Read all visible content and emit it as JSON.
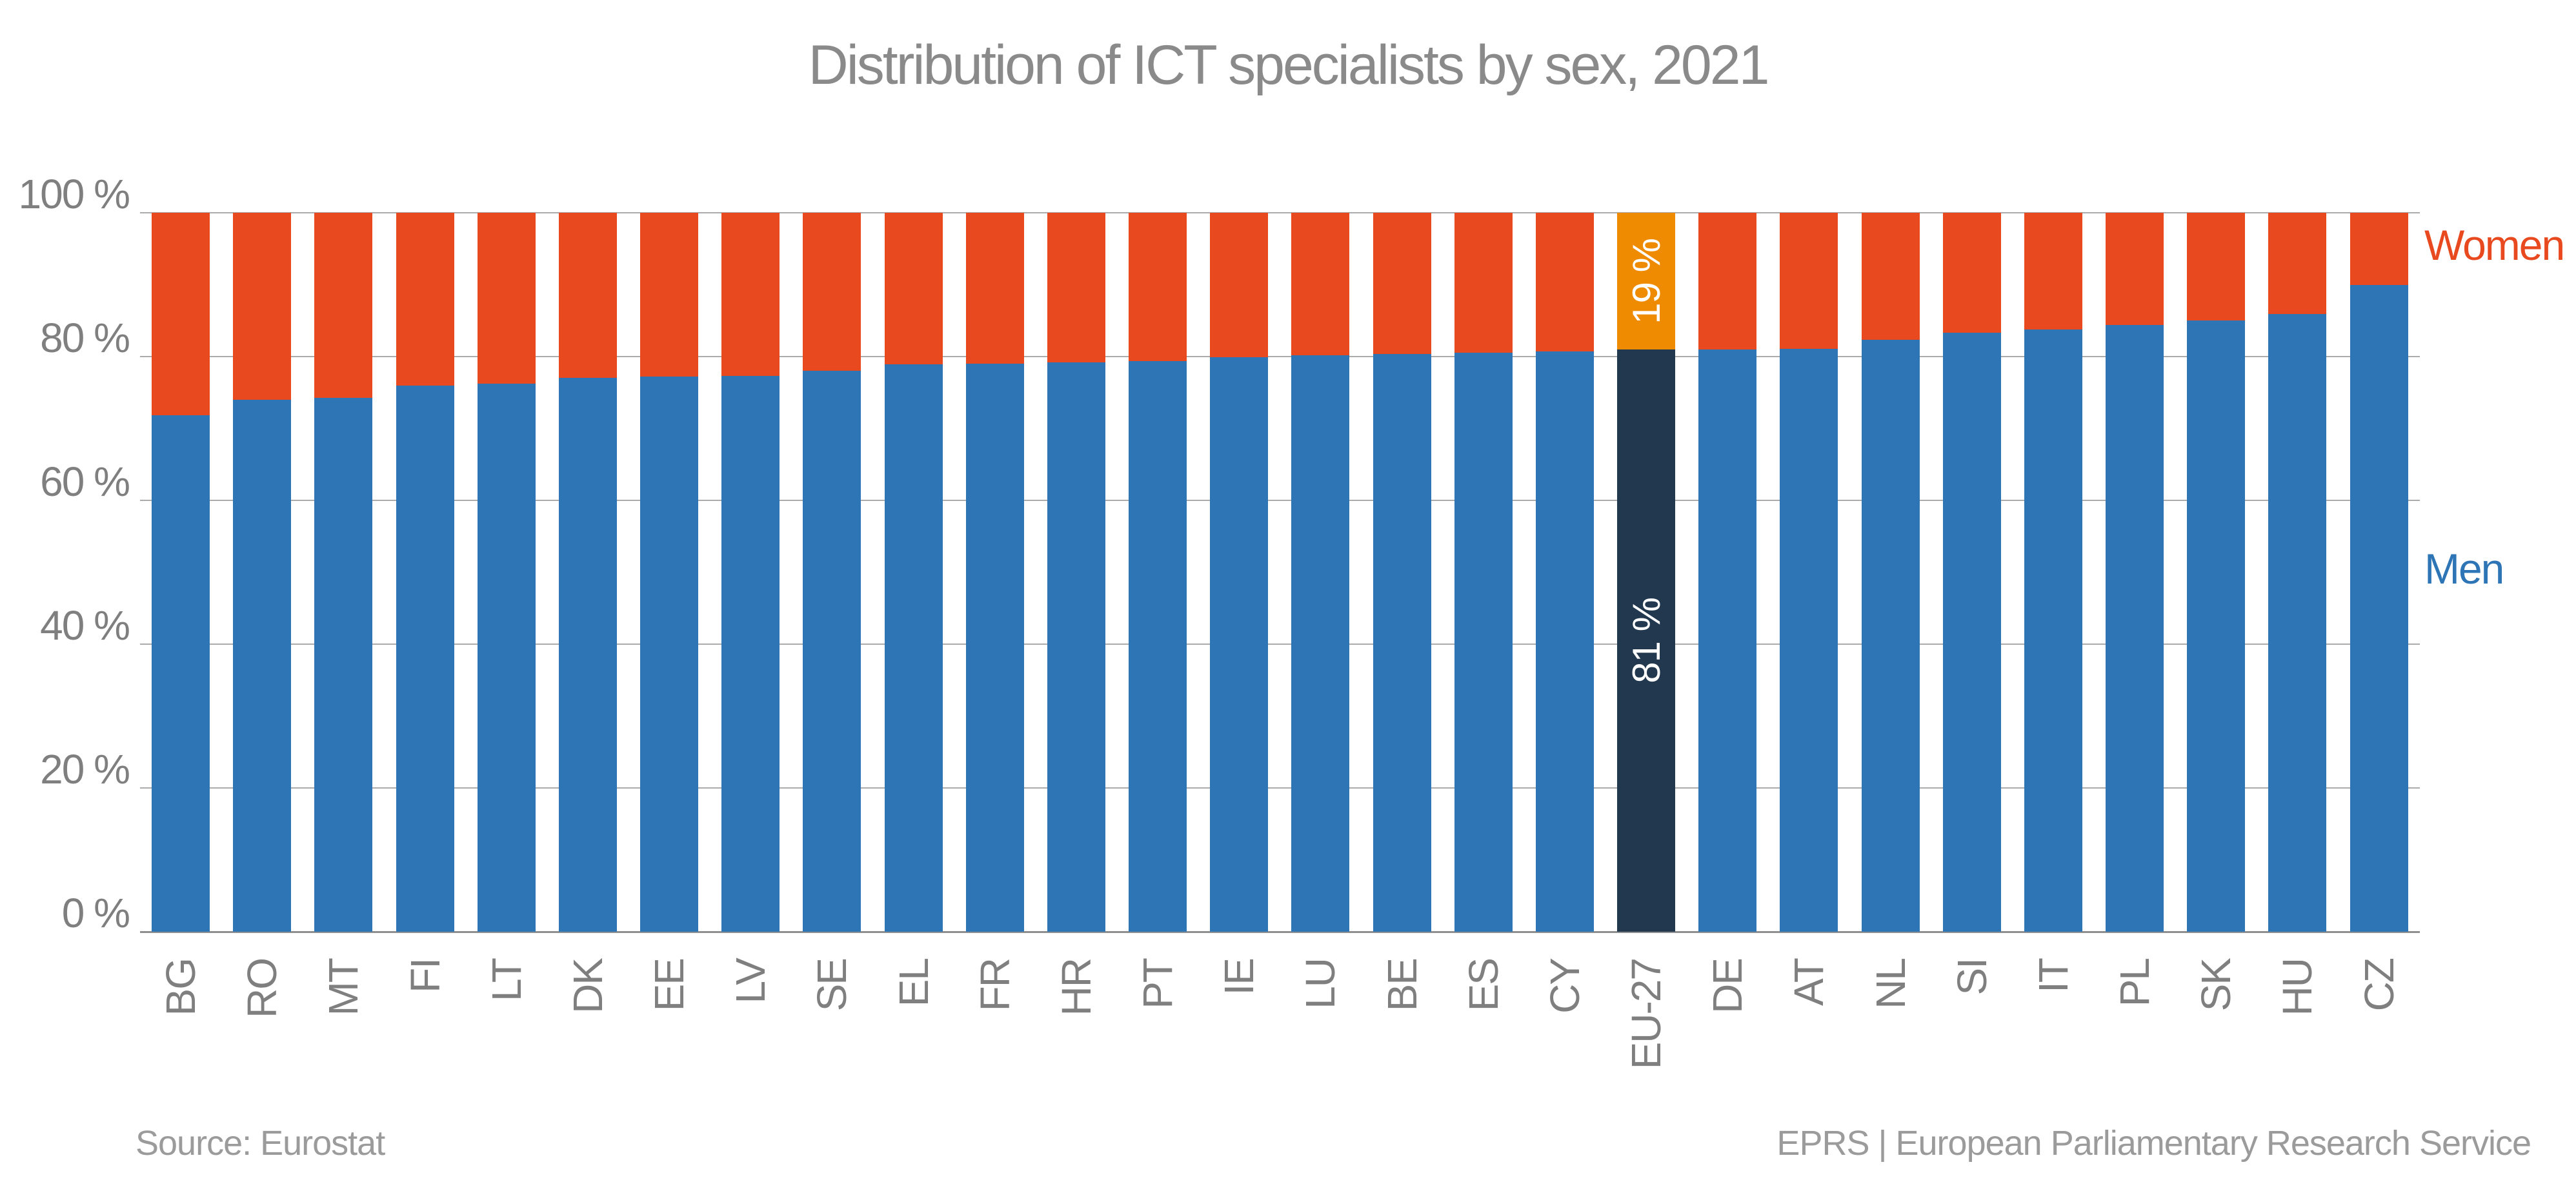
{
  "title": "Distribution of ICT specialists by sex, 2021",
  "legend": {
    "women": "Women",
    "men": "Men"
  },
  "footer": {
    "source": "Source: Eurostat",
    "credit": "EPRS | European Parliamentary Research Service"
  },
  "colors": {
    "men": "#2e75b6",
    "women": "#e8491e",
    "eu_men": "#22384f",
    "eu_women": "#ee8b00",
    "grid": "#ababab",
    "baseline": "#8f8f8f",
    "axis_text": "#7f7f7f",
    "title_text": "#8a8a8a",
    "footer_text": "#9b9b9b",
    "value_label_text": "#ffffff"
  },
  "y_axis": {
    "ticks": [
      {
        "label": "0 %",
        "value": 0
      },
      {
        "label": "20 %",
        "value": 20
      },
      {
        "label": "40 %",
        "value": 40
      },
      {
        "label": "60 %",
        "value": 60
      },
      {
        "label": "80 %",
        "value": 80
      },
      {
        "label": "100 %",
        "value": 100
      }
    ]
  },
  "chart_data": {
    "type": "bar",
    "stacked": true,
    "orientation": "vertical",
    "grid": true,
    "ylim": [
      0,
      100
    ],
    "title": "Distribution of ICT specialists by sex, 2021",
    "legend_position": "right",
    "categories": [
      "BG",
      "RO",
      "MT",
      "FI",
      "LT",
      "DK",
      "EE",
      "LV",
      "SE",
      "EL",
      "FR",
      "HR",
      "PT",
      "IE",
      "LU",
      "BE",
      "ES",
      "CY",
      "EU-27",
      "DE",
      "AT",
      "NL",
      "SI",
      "IT",
      "PL",
      "SK",
      "HU",
      "CZ"
    ],
    "series": [
      {
        "name": "Men",
        "color_key": "men",
        "values": [
          71.8,
          74.0,
          74.3,
          76.0,
          76.2,
          77.0,
          77.2,
          77.3,
          78.0,
          78.9,
          79.0,
          79.2,
          79.4,
          79.9,
          80.2,
          80.4,
          80.5,
          80.7,
          81.0,
          81.0,
          81.1,
          82.3,
          83.3,
          83.8,
          84.4,
          85.0,
          85.9,
          90.0
        ]
      },
      {
        "name": "Women",
        "color_key": "women",
        "values": [
          28.2,
          26.0,
          25.7,
          24.0,
          23.8,
          23.0,
          22.8,
          22.7,
          22.0,
          21.1,
          21.0,
          20.8,
          20.6,
          20.1,
          19.8,
          19.6,
          19.5,
          19.3,
          19.0,
          19.0,
          18.9,
          17.7,
          16.7,
          16.2,
          15.6,
          15.0,
          14.1,
          10.0
        ]
      }
    ],
    "highlight": {
      "category": "EU-27",
      "men_value_label": "81 %",
      "women_value_label": "19 %"
    }
  }
}
